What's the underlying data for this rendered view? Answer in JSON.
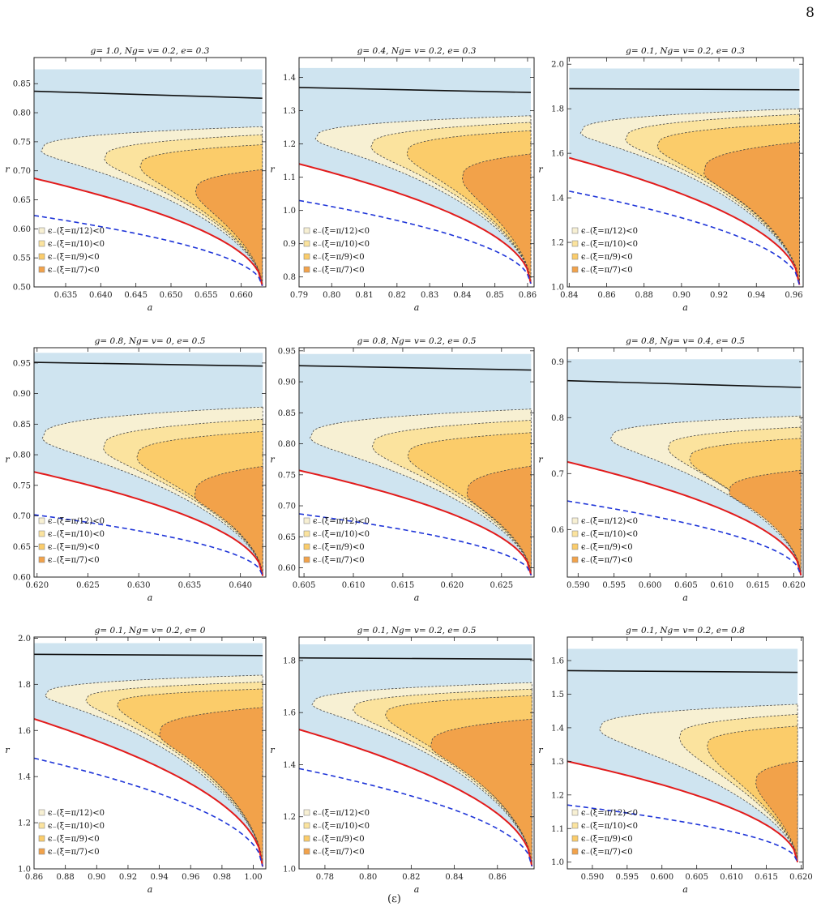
{
  "page": {
    "number": "8",
    "caption_fragment": "(ε)"
  },
  "legend_entries": [
    "ϵ₋(ξ=π/12)<0",
    "ϵ₋(ξ=π/10)<0",
    "ϵ₋(ξ=π/9)<0",
    "ϵ₋(ξ=π/7)<0"
  ],
  "colors": {
    "sky_region": "#cfe4f0",
    "xi_pi12": "#f7f0d3",
    "xi_pi10": "#fbe39e",
    "xi_pi9": "#fbcc6a",
    "xi_pi7": "#f2a24a",
    "upper_curve": "#111111",
    "red_curve": "#e21b1b",
    "blue_dashed": "#1f35d8"
  },
  "chart_data": [
    {
      "type": "area",
      "title": "g= 1.0,  Ng= v= 0.2,  e= 0.3",
      "xlabel": "a",
      "ylabel": "r",
      "xlim": [
        0.6305,
        0.6635
      ],
      "ylim": [
        0.5,
        0.895
      ],
      "xticks": [
        "0.635",
        "0.640",
        "0.645",
        "0.650",
        "0.655",
        "0.660"
      ],
      "yticks": [
        "0.50",
        "0.55",
        "0.60",
        "0.65",
        "0.70",
        "0.75",
        "0.80",
        "0.85"
      ],
      "top_line": [
        [
          0.6305,
          0.837
        ],
        [
          0.663,
          0.825
        ]
      ],
      "red_boundary": {
        "a_start": 0.6305,
        "r_start": 0.687,
        "a_end": 0.663,
        "r_end": 0.502
      },
      "blue_dashed": {
        "a_start": 0.6305,
        "r_start": 0.623,
        "a_end": 0.663,
        "r_end": 0.502
      },
      "legend": [
        "ϵ₋(ξ=π/12)<0",
        "ϵ₋(ξ=π/10)<0",
        "ϵ₋(ξ=π/9)<0",
        "ϵ₋(ξ=π/7)<0"
      ],
      "regions": [
        {
          "name": "ϵ₋(ξ=π/12)<0",
          "nose_a": 0.6315,
          "nose_r": 0.734,
          "upper_r": 0.776
        },
        {
          "name": "ϵ₋(ξ=π/10)<0",
          "nose_a": 0.6405,
          "nose_r": 0.72,
          "upper_r": 0.762
        },
        {
          "name": "ϵ₋(ξ=π/9)<0",
          "nose_a": 0.6456,
          "nose_r": 0.707,
          "upper_r": 0.745
        },
        {
          "name": "ϵ₋(ξ=π/7)<0",
          "nose_a": 0.6535,
          "nose_r": 0.663,
          "upper_r": 0.702
        }
      ]
    },
    {
      "type": "area",
      "title": "g= 0.4,  Ng= v= 0.2,  e= 0.3",
      "xlabel": "a",
      "ylabel": "r",
      "xlim": [
        0.79,
        0.862
      ],
      "ylim": [
        0.77,
        1.46
      ],
      "xticks": [
        "0.79",
        "0.80",
        "0.81",
        "0.82",
        "0.83",
        "0.84",
        "0.85",
        "0.86"
      ],
      "yticks": [
        "0.8",
        "0.9",
        "1.0",
        "1.1",
        "1.2",
        "1.3",
        "1.4"
      ],
      "top_line": [
        [
          0.79,
          1.37
        ],
        [
          0.861,
          1.355
        ]
      ],
      "red_boundary": {
        "a_start": 0.79,
        "r_start": 1.14,
        "a_end": 0.861,
        "r_end": 0.78
      },
      "blue_dashed": {
        "a_start": 0.79,
        "r_start": 1.03,
        "a_end": 0.861,
        "r_end": 0.78
      },
      "legend": [
        "ϵ₋(ξ=π/12)<0",
        "ϵ₋(ξ=π/10)<0",
        "ϵ₋(ξ=π/9)<0",
        "ϵ₋(ξ=π/7)<0"
      ],
      "regions": [
        {
          "name": "ϵ₋(ξ=π/12)<0",
          "nose_a": 0.795,
          "nose_r": 1.215,
          "upper_r": 1.285
        },
        {
          "name": "ϵ₋(ξ=π/10)<0",
          "nose_a": 0.812,
          "nose_r": 1.19,
          "upper_r": 1.265
        },
        {
          "name": "ϵ₋(ξ=π/9)<0",
          "nose_a": 0.823,
          "nose_r": 1.17,
          "upper_r": 1.24
        },
        {
          "name": "ϵ₋(ξ=π/7)<0",
          "nose_a": 0.84,
          "nose_r": 1.095,
          "upper_r": 1.17
        }
      ]
    },
    {
      "type": "area",
      "title": "g= 0.1,  Ng= v= 0.2,  e= 0.3",
      "xlabel": "a",
      "ylabel": "r",
      "xlim": [
        0.839,
        0.965
      ],
      "ylim": [
        1.0,
        2.03
      ],
      "xticks": [
        "0.84",
        "0.86",
        "0.88",
        "0.90",
        "0.92",
        "0.94",
        "0.96"
      ],
      "yticks": [
        "1.0",
        "1.2",
        "1.4",
        "1.6",
        "1.8",
        "2.0"
      ],
      "top_line": [
        [
          0.84,
          1.89
        ],
        [
          0.963,
          1.885
        ]
      ],
      "red_boundary": {
        "a_start": 0.84,
        "r_start": 1.58,
        "a_end": 0.963,
        "r_end": 1.01
      },
      "blue_dashed": {
        "a_start": 0.84,
        "r_start": 1.43,
        "a_end": 0.963,
        "r_end": 1.01
      },
      "legend": [
        "ϵ₋(ξ=π/12)<0",
        "ϵ₋(ξ=π/10)<0",
        "ϵ₋(ξ=π/9)<0",
        "ϵ₋(ξ=π/7)<0"
      ],
      "regions": [
        {
          "name": "ϵ₋(ξ=π/12)<0",
          "nose_a": 0.846,
          "nose_r": 1.69,
          "upper_r": 1.8
        },
        {
          "name": "ϵ₋(ξ=π/10)<0",
          "nose_a": 0.87,
          "nose_r": 1.66,
          "upper_r": 1.775
        },
        {
          "name": "ϵ₋(ξ=π/9)<0",
          "nose_a": 0.887,
          "nose_r": 1.63,
          "upper_r": 1.735
        },
        {
          "name": "ϵ₋(ξ=π/7)<0",
          "nose_a": 0.912,
          "nose_r": 1.51,
          "upper_r": 1.65
        }
      ]
    },
    {
      "type": "area",
      "title": "g= 0.8,  Ng= v= 0,  e= 0.5",
      "xlabel": "a",
      "ylabel": "r",
      "xlim": [
        0.6197,
        0.6425
      ],
      "ylim": [
        0.6,
        0.975
      ],
      "xticks": [
        "0.620",
        "0.625",
        "0.630",
        "0.635",
        "0.640"
      ],
      "yticks": [
        "0.60",
        "0.65",
        "0.70",
        "0.75",
        "0.80",
        "0.85",
        "0.90",
        "0.95"
      ],
      "top_line": [
        [
          0.6197,
          0.951
        ],
        [
          0.6422,
          0.945
        ]
      ],
      "red_boundary": {
        "a_start": 0.6197,
        "r_start": 0.772,
        "a_end": 0.6422,
        "r_end": 0.602
      },
      "blue_dashed": {
        "a_start": 0.6197,
        "r_start": 0.702,
        "a_end": 0.6422,
        "r_end": 0.602
      },
      "legend": [
        "ϵ₋(ξ=π/12)<0",
        "ϵ₋(ξ=π/10)<0",
        "ϵ₋(ξ=π/9)<0",
        "ϵ₋(ξ=π/7)<0"
      ],
      "regions": [
        {
          "name": "ϵ₋(ξ=π/12)<0",
          "nose_a": 0.6205,
          "nose_r": 0.826,
          "upper_r": 0.878
        },
        {
          "name": "ϵ₋(ξ=π/10)<0",
          "nose_a": 0.6265,
          "nose_r": 0.81,
          "upper_r": 0.858
        },
        {
          "name": "ϵ₋(ξ=π/9)<0",
          "nose_a": 0.6298,
          "nose_r": 0.795,
          "upper_r": 0.838
        },
        {
          "name": "ϵ₋(ξ=π/7)<0",
          "nose_a": 0.6355,
          "nose_r": 0.732,
          "upper_r": 0.781
        }
      ]
    },
    {
      "type": "area",
      "title": "g= 0.8,  Ng= v= 0.2,  e= 0.5",
      "xlabel": "a",
      "ylabel": "r",
      "xlim": [
        0.6045,
        0.6283
      ],
      "ylim": [
        0.585,
        0.955
      ],
      "xticks": [
        "0.605",
        "0.610",
        "0.615",
        "0.620",
        "0.625"
      ],
      "yticks": [
        "0.60",
        "0.65",
        "0.70",
        "0.75",
        "0.80",
        "0.85",
        "0.90",
        "0.95"
      ],
      "top_line": [
        [
          0.6045,
          0.926
        ],
        [
          0.628,
          0.919
        ]
      ],
      "red_boundary": {
        "a_start": 0.6045,
        "r_start": 0.757,
        "a_end": 0.628,
        "r_end": 0.588
      },
      "blue_dashed": {
        "a_start": 0.6045,
        "r_start": 0.687,
        "a_end": 0.628,
        "r_end": 0.588
      },
      "legend": [
        "ϵ₋(ξ=π/12)<0",
        "ϵ₋(ξ=π/10)<0",
        "ϵ₋(ξ=π/9)<0",
        "ϵ₋(ξ=π/7)<0"
      ],
      "regions": [
        {
          "name": "ϵ₋(ξ=π/12)<0",
          "nose_a": 0.6056,
          "nose_r": 0.809,
          "upper_r": 0.856
        },
        {
          "name": "ϵ₋(ξ=π/10)<0",
          "nose_a": 0.6119,
          "nose_r": 0.795,
          "upper_r": 0.838
        },
        {
          "name": "ϵ₋(ξ=π/9)<0",
          "nose_a": 0.6155,
          "nose_r": 0.78,
          "upper_r": 0.818
        },
        {
          "name": "ϵ₋(ξ=π/7)<0",
          "nose_a": 0.6215,
          "nose_r": 0.718,
          "upper_r": 0.764
        }
      ]
    },
    {
      "type": "area",
      "title": "g= 0.8,  Ng= v= 0.4,  e= 0.5",
      "xlabel": "a",
      "ylabel": "r",
      "xlim": [
        0.5885,
        0.6213
      ],
      "ylim": [
        0.515,
        0.925
      ],
      "xticks": [
        "0.590",
        "0.595",
        "0.600",
        "0.605",
        "0.610",
        "0.615",
        "0.620"
      ],
      "yticks": [
        "0.6",
        "0.7",
        "0.8",
        "0.9"
      ],
      "top_line": [
        [
          0.5885,
          0.866
        ],
        [
          0.621,
          0.854
        ]
      ],
      "red_boundary": {
        "a_start": 0.5885,
        "r_start": 0.721,
        "a_end": 0.621,
        "r_end": 0.518
      },
      "blue_dashed": {
        "a_start": 0.5885,
        "r_start": 0.651,
        "a_end": 0.621,
        "r_end": 0.518
      },
      "legend": [
        "ϵ₋(ξ=π/12)<0",
        "ϵ₋(ξ=π/10)<0",
        "ϵ₋(ξ=π/9)<0",
        "ϵ₋(ξ=π/7)<0"
      ],
      "regions": [
        {
          "name": "ϵ₋(ξ=π/12)<0",
          "nose_a": 0.5945,
          "nose_r": 0.762,
          "upper_r": 0.803
        },
        {
          "name": "ϵ₋(ξ=π/10)<0",
          "nose_a": 0.6025,
          "nose_r": 0.745,
          "upper_r": 0.783
        },
        {
          "name": "ϵ₋(ξ=π/9)<0",
          "nose_a": 0.6055,
          "nose_r": 0.725,
          "upper_r": 0.763
        },
        {
          "name": "ϵ₋(ξ=π/7)<0",
          "nose_a": 0.611,
          "nose_r": 0.665,
          "upper_r": 0.706
        }
      ]
    },
    {
      "type": "area",
      "title": "g= 0.1,  Ng= v= 0.2,  e= 0",
      "xlabel": "a",
      "ylabel": "r",
      "xlim": [
        0.86,
        1.008
      ],
      "ylim": [
        1.0,
        2.005
      ],
      "xticks": [
        "0.86",
        "0.88",
        "0.90",
        "0.92",
        "0.94",
        "0.96",
        "0.98",
        "1.00"
      ],
      "yticks": [
        "1.0",
        "1.2",
        "1.4",
        "1.6",
        "1.8",
        "2.0"
      ],
      "top_line": [
        [
          0.86,
          1.93
        ],
        [
          1.006,
          1.925
        ]
      ],
      "red_boundary": {
        "a_start": 0.86,
        "r_start": 1.65,
        "a_end": 1.006,
        "r_end": 1.01
      },
      "blue_dashed": {
        "a_start": 0.86,
        "r_start": 1.48,
        "a_end": 1.006,
        "r_end": 1.01
      },
      "legend": [
        "ϵ₋(ξ=π/12)<0",
        "ϵ₋(ξ=π/10)<0",
        "ϵ₋(ξ=π/9)<0",
        "ϵ₋(ξ=π/7)<0"
      ],
      "regions": [
        {
          "name": "ϵ₋(ξ=π/12)<0",
          "nose_a": 0.867,
          "nose_r": 1.75,
          "upper_r": 1.84
        },
        {
          "name": "ϵ₋(ξ=π/10)<0",
          "nose_a": 0.893,
          "nose_r": 1.73,
          "upper_r": 1.81
        },
        {
          "name": "ϵ₋(ξ=π/9)<0",
          "nose_a": 0.913,
          "nose_r": 1.71,
          "upper_r": 1.78
        },
        {
          "name": "ϵ₋(ξ=π/7)<0",
          "nose_a": 0.94,
          "nose_r": 1.58,
          "upper_r": 1.7
        }
      ]
    },
    {
      "type": "area",
      "title": "g= 0.1,  Ng= v= 0.2,  e= 0.5",
      "xlabel": "a",
      "ylabel": "r",
      "xlim": [
        0.768,
        0.877
      ],
      "ylim": [
        1.0,
        1.89
      ],
      "xticks": [
        "0.78",
        "0.80",
        "0.82",
        "0.84",
        "0.86"
      ],
      "yticks": [
        "1.0",
        "1.2",
        "1.4",
        "1.6",
        "1.8"
      ],
      "top_line": [
        [
          0.768,
          1.81
        ],
        [
          0.876,
          1.805
        ]
      ],
      "red_boundary": {
        "a_start": 0.768,
        "r_start": 1.535,
        "a_end": 0.876,
        "r_end": 1.01
      },
      "blue_dashed": {
        "a_start": 0.768,
        "r_start": 1.385,
        "a_end": 0.876,
        "r_end": 1.01
      },
      "legend": [
        "ϵ₋(ξ=π/12)<0",
        "ϵ₋(ξ=π/10)<0",
        "ϵ₋(ξ=π/9)<0",
        "ϵ₋(ξ=π/7)<0"
      ],
      "regions": [
        {
          "name": "ϵ₋(ξ=π/12)<0",
          "nose_a": 0.774,
          "nose_r": 1.63,
          "upper_r": 1.715
        },
        {
          "name": "ϵ₋(ξ=π/10)<0",
          "nose_a": 0.793,
          "nose_r": 1.61,
          "upper_r": 1.69
        },
        {
          "name": "ϵ₋(ξ=π/9)<0",
          "nose_a": 0.808,
          "nose_r": 1.59,
          "upper_r": 1.665
        },
        {
          "name": "ϵ₋(ξ=π/7)<0",
          "nose_a": 0.829,
          "nose_r": 1.47,
          "upper_r": 1.575
        }
      ]
    },
    {
      "type": "area",
      "title": "g= 0.1,  Ng= v= 0.2,  e= 0.8",
      "xlabel": "a",
      "ylabel": "r",
      "xlim": [
        0.5864,
        0.6203
      ],
      "ylim": [
        0.98,
        1.67
      ],
      "xticks": [
        "0.590",
        "0.595",
        "0.600",
        "0.605",
        "0.610",
        "0.615",
        "0.620"
      ],
      "yticks": [
        "1.0",
        "1.1",
        "1.2",
        "1.3",
        "1.4",
        "1.5",
        "1.6"
      ],
      "top_line": [
        [
          0.5864,
          1.57
        ],
        [
          0.6195,
          1.565
        ]
      ],
      "red_boundary": {
        "a_start": 0.5864,
        "r_start": 1.3,
        "a_end": 0.6195,
        "r_end": 1.0
      },
      "blue_dashed": {
        "a_start": 0.5864,
        "r_start": 1.17,
        "a_end": 0.6195,
        "r_end": 1.0
      },
      "legend": [
        "ϵ₋(ξ=π/12)<0",
        "ϵ₋(ξ=π/10)<0",
        "ϵ₋(ξ=π/9)<0",
        "ϵ₋(ξ=π/7)<0"
      ],
      "regions": [
        {
          "name": "ϵ₋(ξ=π/12)<0",
          "nose_a": 0.591,
          "nose_r": 1.395,
          "upper_r": 1.47
        },
        {
          "name": "ϵ₋(ξ=π/10)<0",
          "nose_a": 0.6025,
          "nose_r": 1.37,
          "upper_r": 1.44
        },
        {
          "name": "ϵ₋(ξ=π/9)<0",
          "nose_a": 0.6065,
          "nose_r": 1.345,
          "upper_r": 1.405
        },
        {
          "name": "ϵ₋(ξ=π/7)<0",
          "nose_a": 0.6135,
          "nose_r": 1.235,
          "upper_r": 1.3
        }
      ]
    }
  ]
}
